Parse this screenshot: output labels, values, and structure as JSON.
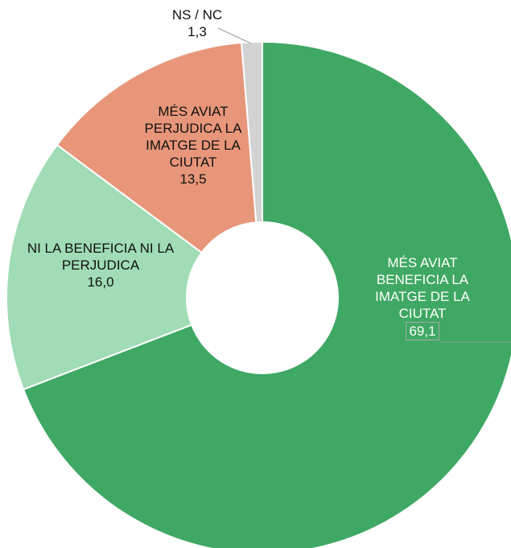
{
  "chart_data": {
    "type": "donut",
    "categories": [
      "MÉS AVIAT BENEFICIA LA IMATGE DE LA CIUTAT",
      "NI LA BENEFICIA NI LA PERJUDICA",
      "MÉS AVIAT PERJUDICA LA IMATGE DE LA CIUTAT",
      "NS / NC"
    ],
    "values": [
      69.1,
      16.0,
      13.5,
      1.3
    ],
    "value_labels": [
      "69,1",
      "16,0",
      "13,5",
      "1,3"
    ],
    "colors": [
      "#3fa864",
      "#a0dcb5",
      "#e8967a",
      "#d3d3d3"
    ]
  }
}
